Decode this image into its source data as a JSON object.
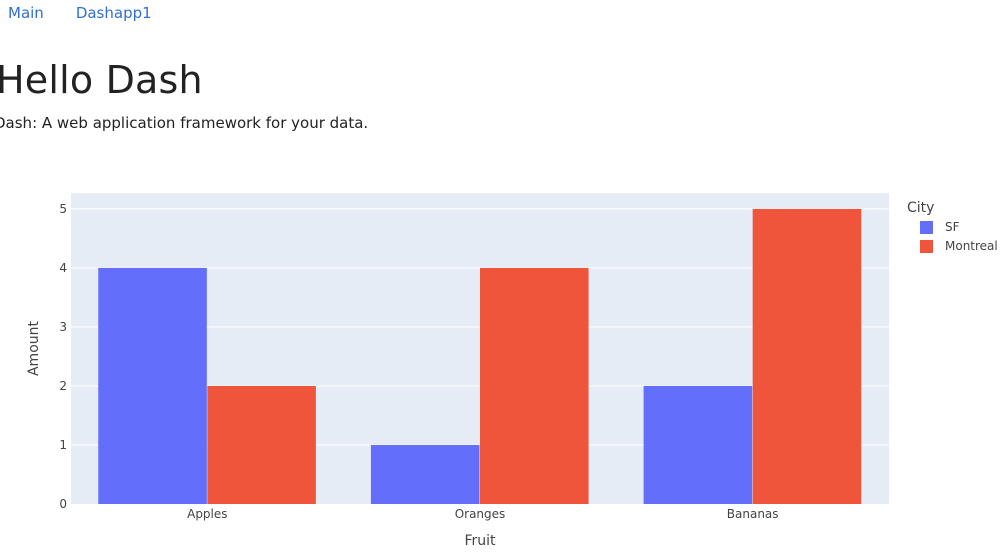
{
  "nav": {
    "items": [
      {
        "label": "Main"
      },
      {
        "label": "Dashapp1"
      }
    ]
  },
  "page": {
    "title": "Hello Dash",
    "subtitle": "Dash: A web application framework for your data."
  },
  "colors": {
    "plot_bg": "#e5ecf6",
    "grid": "#ffffff",
    "SF": "#636efa",
    "Montreal": "#ef553b"
  },
  "chart_data": {
    "type": "bar",
    "barmode": "group",
    "categories": [
      "Apples",
      "Oranges",
      "Bananas"
    ],
    "series": [
      {
        "name": "SF",
        "values": [
          4,
          1,
          2
        ],
        "color": "#636efa"
      },
      {
        "name": "Montreal",
        "values": [
          2,
          4,
          5
        ],
        "color": "#ef553b"
      }
    ],
    "xlabel": "Fruit",
    "ylabel": "Amount",
    "ylim": [
      0,
      5.27
    ],
    "yticks": [
      0,
      1,
      2,
      3,
      4,
      5
    ],
    "legend_title": "City",
    "legend_position": "top-right",
    "grid": true
  }
}
